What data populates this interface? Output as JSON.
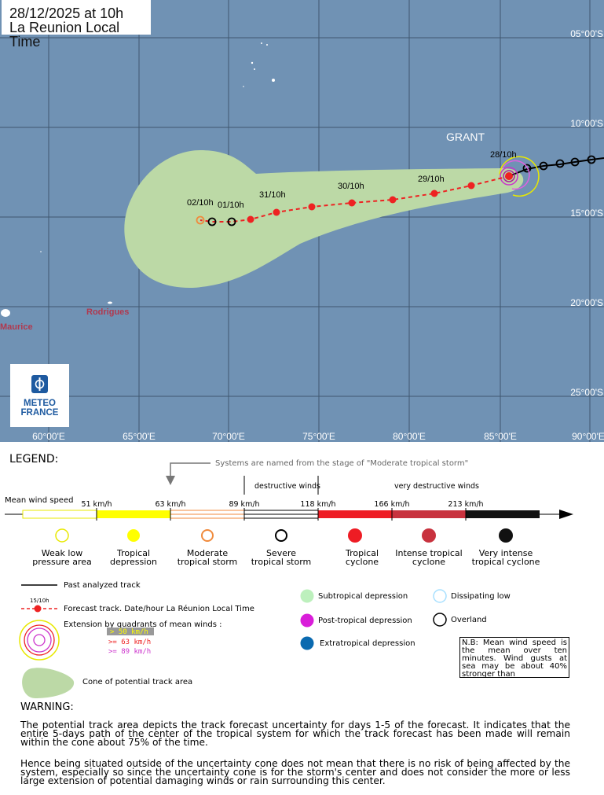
{
  "header": {
    "line1": "28/12/2025 at 10h",
    "line2": "La Reunion Local Time"
  },
  "storm": {
    "name": "GRANT"
  },
  "map": {
    "lon_labels": [
      "60°00'E",
      "65°00'E",
      "70°00'E",
      "75°00'E",
      "80°00'E",
      "85°00'E",
      "90°00'E"
    ],
    "lat_labels": [
      "05°00'S",
      "10°00'S",
      "15°00'S",
      "20°00'S",
      "25°00'S"
    ],
    "places": {
      "rodrigues": "Rodrigues",
      "maurice": "Maurice"
    },
    "forecast_labels": [
      "28/10h",
      "29/10h",
      "30/10h",
      "31/10h",
      "01/10h",
      "02/10h"
    ],
    "colors": {
      "ocean": "#7092b4",
      "cone": "#bcd9a6",
      "forecast": "#ee2222",
      "past_track": "#000000"
    }
  },
  "logo": {
    "line1": "METEO",
    "line2": "FRANCE"
  },
  "legend": {
    "title": "LEGEND:",
    "naming_note": "Systems are named from the stage of \"Moderate tropical storm\"",
    "destructive": "destructive winds",
    "very_destructive": "very destructive winds",
    "mean_wind": "Mean wind speed",
    "thresholds": [
      "51 km/h",
      "63 km/h",
      "89 km/h",
      "118 km/h",
      "166 km/h",
      "213 km/h"
    ],
    "categories": [
      {
        "l1": "Weak low",
        "l2": "pressure area"
      },
      {
        "l1": "Tropical",
        "l2": "depression"
      },
      {
        "l1": "Moderate",
        "l2": "tropical storm"
      },
      {
        "l1": "Severe",
        "l2": "tropical storm"
      },
      {
        "l1": "Tropical",
        "l2": "cyclone"
      },
      {
        "l1": "Intense tropical",
        "l2": "cyclone"
      },
      {
        "l1": "Very intense",
        "l2": "tropical cyclone"
      }
    ],
    "past_track": "Past analyzed track",
    "sample_date": "15/10h",
    "forecast_track": "Forecast track. Date/hour La Réunion Local Time",
    "extension": "Extension by quadrants of mean winds :",
    "ext_50": "> 50 km/h",
    "ext_63": ">= 63 km/h",
    "ext_89": ">= 89 km/h",
    "cone": "Cone of potential track area",
    "subtropical": "Subtropical depression",
    "post_tropical": "Post-tropical depression",
    "extratropical": "Extratropical depression",
    "dissipating": "Dissipating low",
    "overland": "Overland",
    "nb": "N.B: Mean wind speed is the mean over ten minutes. Wind gusts at sea may be about 40% stronger than"
  },
  "warning": {
    "title": "WARNING:",
    "p1": "The potential track area depicts the track forecast uncertainty for days 1-5 of the forecast. It indicates that the entire 5-days path of the center of the tropical system for which the track forecast has been made will remain within the cone about 75% of the time.",
    "p2": "Hence being situated outside of the uncertainty cone does not mean that there is no risk of being affected by the system, especially so since the uncertainty cone is for the storm's center and does not consider the more or less large extension of potential damaging winds or rain surrounding this center."
  }
}
